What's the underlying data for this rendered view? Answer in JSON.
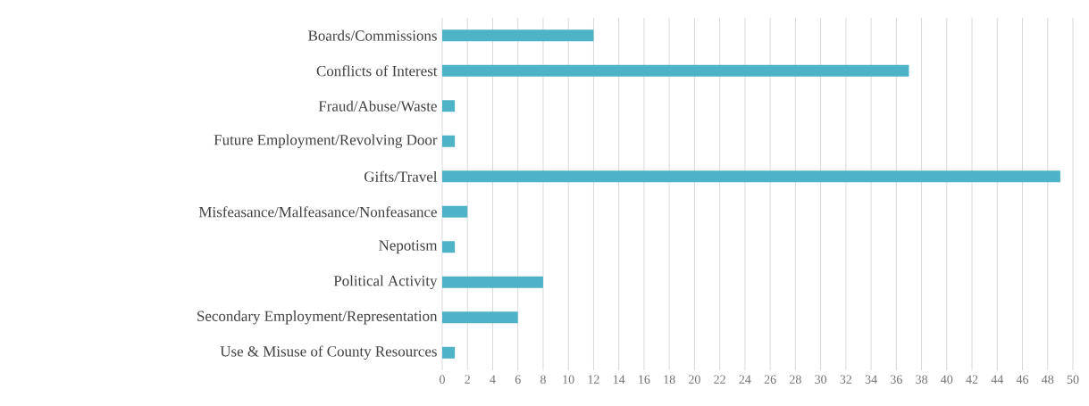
{
  "chart_data": {
    "type": "bar",
    "orientation": "horizontal",
    "categories": [
      "Boards/Commissions",
      "Conflicts of Interest",
      "Fraud/Abuse/Waste",
      "Future Employment/Revolving Door",
      "Gifts/Travel",
      "Misfeasance/Malfeasance/Nonfeasance",
      "Nepotism",
      "Political Activity",
      "Secondary Employment/Representation",
      "Use & Misuse of County Resources"
    ],
    "values": [
      12,
      37,
      1,
      1,
      49,
      2,
      1,
      8,
      6,
      1
    ],
    "color": "#4fb3c8",
    "xlim": [
      0,
      50
    ],
    "xticks": [
      0,
      2,
      4,
      6,
      8,
      10,
      12,
      14,
      16,
      18,
      20,
      22,
      24,
      26,
      28,
      30,
      32,
      34,
      36,
      38,
      40,
      42,
      44,
      46,
      48,
      50
    ],
    "grid": "x"
  }
}
